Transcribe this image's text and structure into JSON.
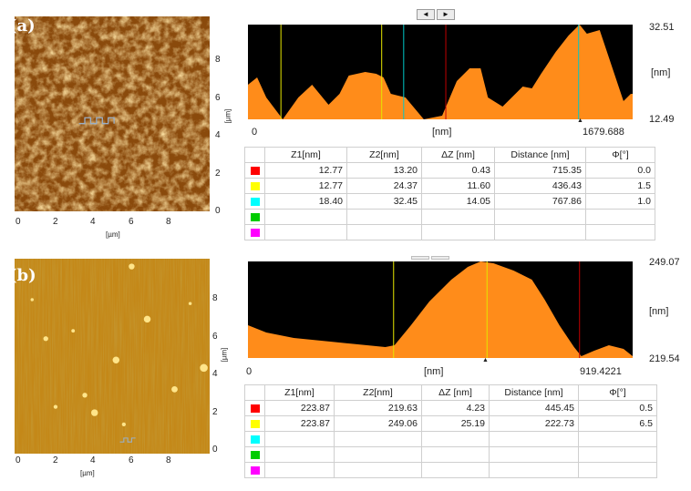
{
  "panels": [
    {
      "label": "(a)",
      "afm": {
        "x_ticks": [
          "0",
          "2",
          "4",
          "6",
          "8"
        ],
        "y_ticks": [
          "0",
          "2",
          "4",
          "6",
          "8"
        ],
        "x_unit": "[µm]",
        "y_unit": "[µm]"
      },
      "profile": {
        "x_start": "0",
        "x_end": "1679.688",
        "x_unit": "[nm]",
        "y_max": "32.51",
        "y_min": "12.49",
        "y_unit": "[nm]",
        "nav_left": "◄",
        "nav_right": "►"
      },
      "table": {
        "headers": [
          "Z1[nm]",
          "Z2[nm]",
          "ΔZ [nm]",
          "Distance [nm]",
          "Φ[°]"
        ],
        "rows": [
          {
            "color": "#ff0000",
            "cells": [
              "12.77",
              "13.20",
              "0.43",
              "715.35",
              "0.0"
            ]
          },
          {
            "color": "#ffff00",
            "cells": [
              "12.77",
              "24.37",
              "11.60",
              "436.43",
              "1.5"
            ]
          },
          {
            "color": "#00ffff",
            "cells": [
              "18.40",
              "32.45",
              "14.05",
              "767.86",
              "1.0"
            ]
          },
          {
            "color": "#00cc00",
            "cells": [
              "",
              "",
              "",
              "",
              ""
            ]
          },
          {
            "color": "#ff00ff",
            "cells": [
              "",
              "",
              "",
              "",
              ""
            ]
          }
        ]
      }
    },
    {
      "label": "(b)",
      "afm": {
        "x_ticks": [
          "0",
          "2",
          "4",
          "6",
          "8"
        ],
        "y_ticks": [
          "0",
          "2",
          "4",
          "6",
          "8"
        ],
        "x_unit": "[µm]",
        "y_unit": "[µm]"
      },
      "profile": {
        "x_start": "0",
        "x_end": "919.4221",
        "x_unit": "[nm]",
        "y_max": "249.07",
        "y_min": "219.54",
        "y_unit": "[nm]"
      },
      "table": {
        "headers": [
          "Z1[nm]",
          "Z2[nm]",
          "ΔZ [nm]",
          "Distance [nm]",
          "Φ[°]"
        ],
        "rows": [
          {
            "color": "#ff0000",
            "cells": [
              "223.87",
              "219.63",
              "4.23",
              "445.45",
              "0.5"
            ]
          },
          {
            "color": "#ffff00",
            "cells": [
              "223.87",
              "249.06",
              "25.19",
              "222.73",
              "6.5"
            ]
          },
          {
            "color": "#00ffff",
            "cells": [
              "",
              "",
              "",
              "",
              ""
            ]
          },
          {
            "color": "#00cc00",
            "cells": [
              "",
              "",
              "",
              "",
              ""
            ]
          },
          {
            "color": "#ff00ff",
            "cells": [
              "",
              "",
              "",
              "",
              ""
            ]
          }
        ]
      }
    }
  ]
}
